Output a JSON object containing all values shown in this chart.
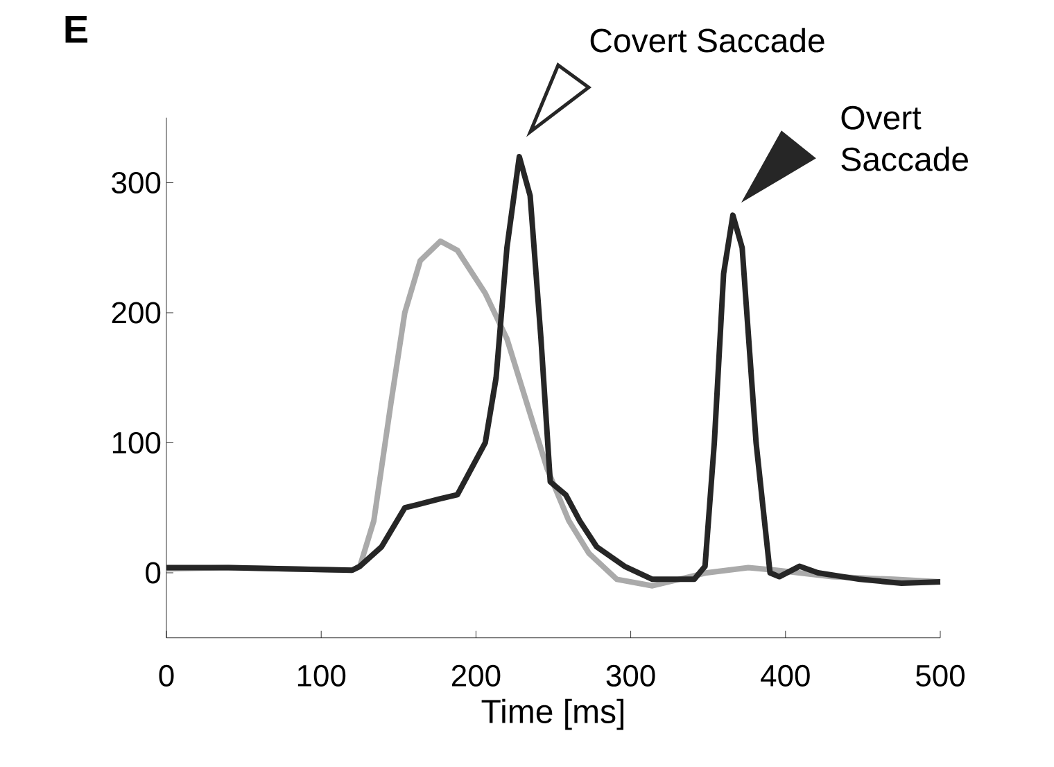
{
  "chart_data": {
    "type": "line",
    "xlabel": "Time [ms]",
    "xlim": [
      0,
      500
    ],
    "ylim": [
      -50,
      350
    ],
    "xticks": [
      0,
      100,
      200,
      300,
      400,
      500
    ],
    "yticks": [
      0,
      100,
      200,
      300
    ],
    "grid": false,
    "line_style": "solid",
    "marker": "none",
    "series": [
      {
        "color": "#aaaaaa",
        "x": [
          0,
          40,
          80,
          120,
          125,
          134,
          145,
          154,
          164,
          177,
          188,
          206,
          220,
          233,
          246,
          260,
          273,
          291,
          314,
          349,
          376,
          394,
          430,
          470,
          500
        ],
        "values": [
          3,
          4,
          3,
          2,
          5,
          40,
          130,
          200,
          240,
          255,
          248,
          215,
          180,
          130,
          80,
          40,
          15,
          -5,
          -10,
          0,
          4,
          2,
          -3,
          -5,
          -7
        ]
      },
      {
        "color": "#262626",
        "x": [
          0,
          40,
          80,
          120,
          125,
          139,
          154,
          161,
          177,
          188,
          197,
          206,
          213,
          220,
          228,
          235,
          242,
          248,
          258,
          267,
          278,
          296,
          314,
          341,
          348,
          354,
          360,
          366,
          372,
          381,
          390,
          396,
          409,
          421,
          448,
          475,
          500
        ],
        "values": [
          4,
          4,
          3,
          2,
          5,
          20,
          50,
          52,
          57,
          60,
          80,
          100,
          150,
          250,
          320,
          290,
          180,
          70,
          60,
          40,
          20,
          5,
          -5,
          -5,
          5,
          100,
          230,
          275,
          250,
          100,
          0,
          -3,
          5,
          0,
          -5,
          -8,
          -7
        ]
      }
    ],
    "annotations": [
      "E",
      "Covert Saccade",
      "Overt Saccade"
    ]
  }
}
